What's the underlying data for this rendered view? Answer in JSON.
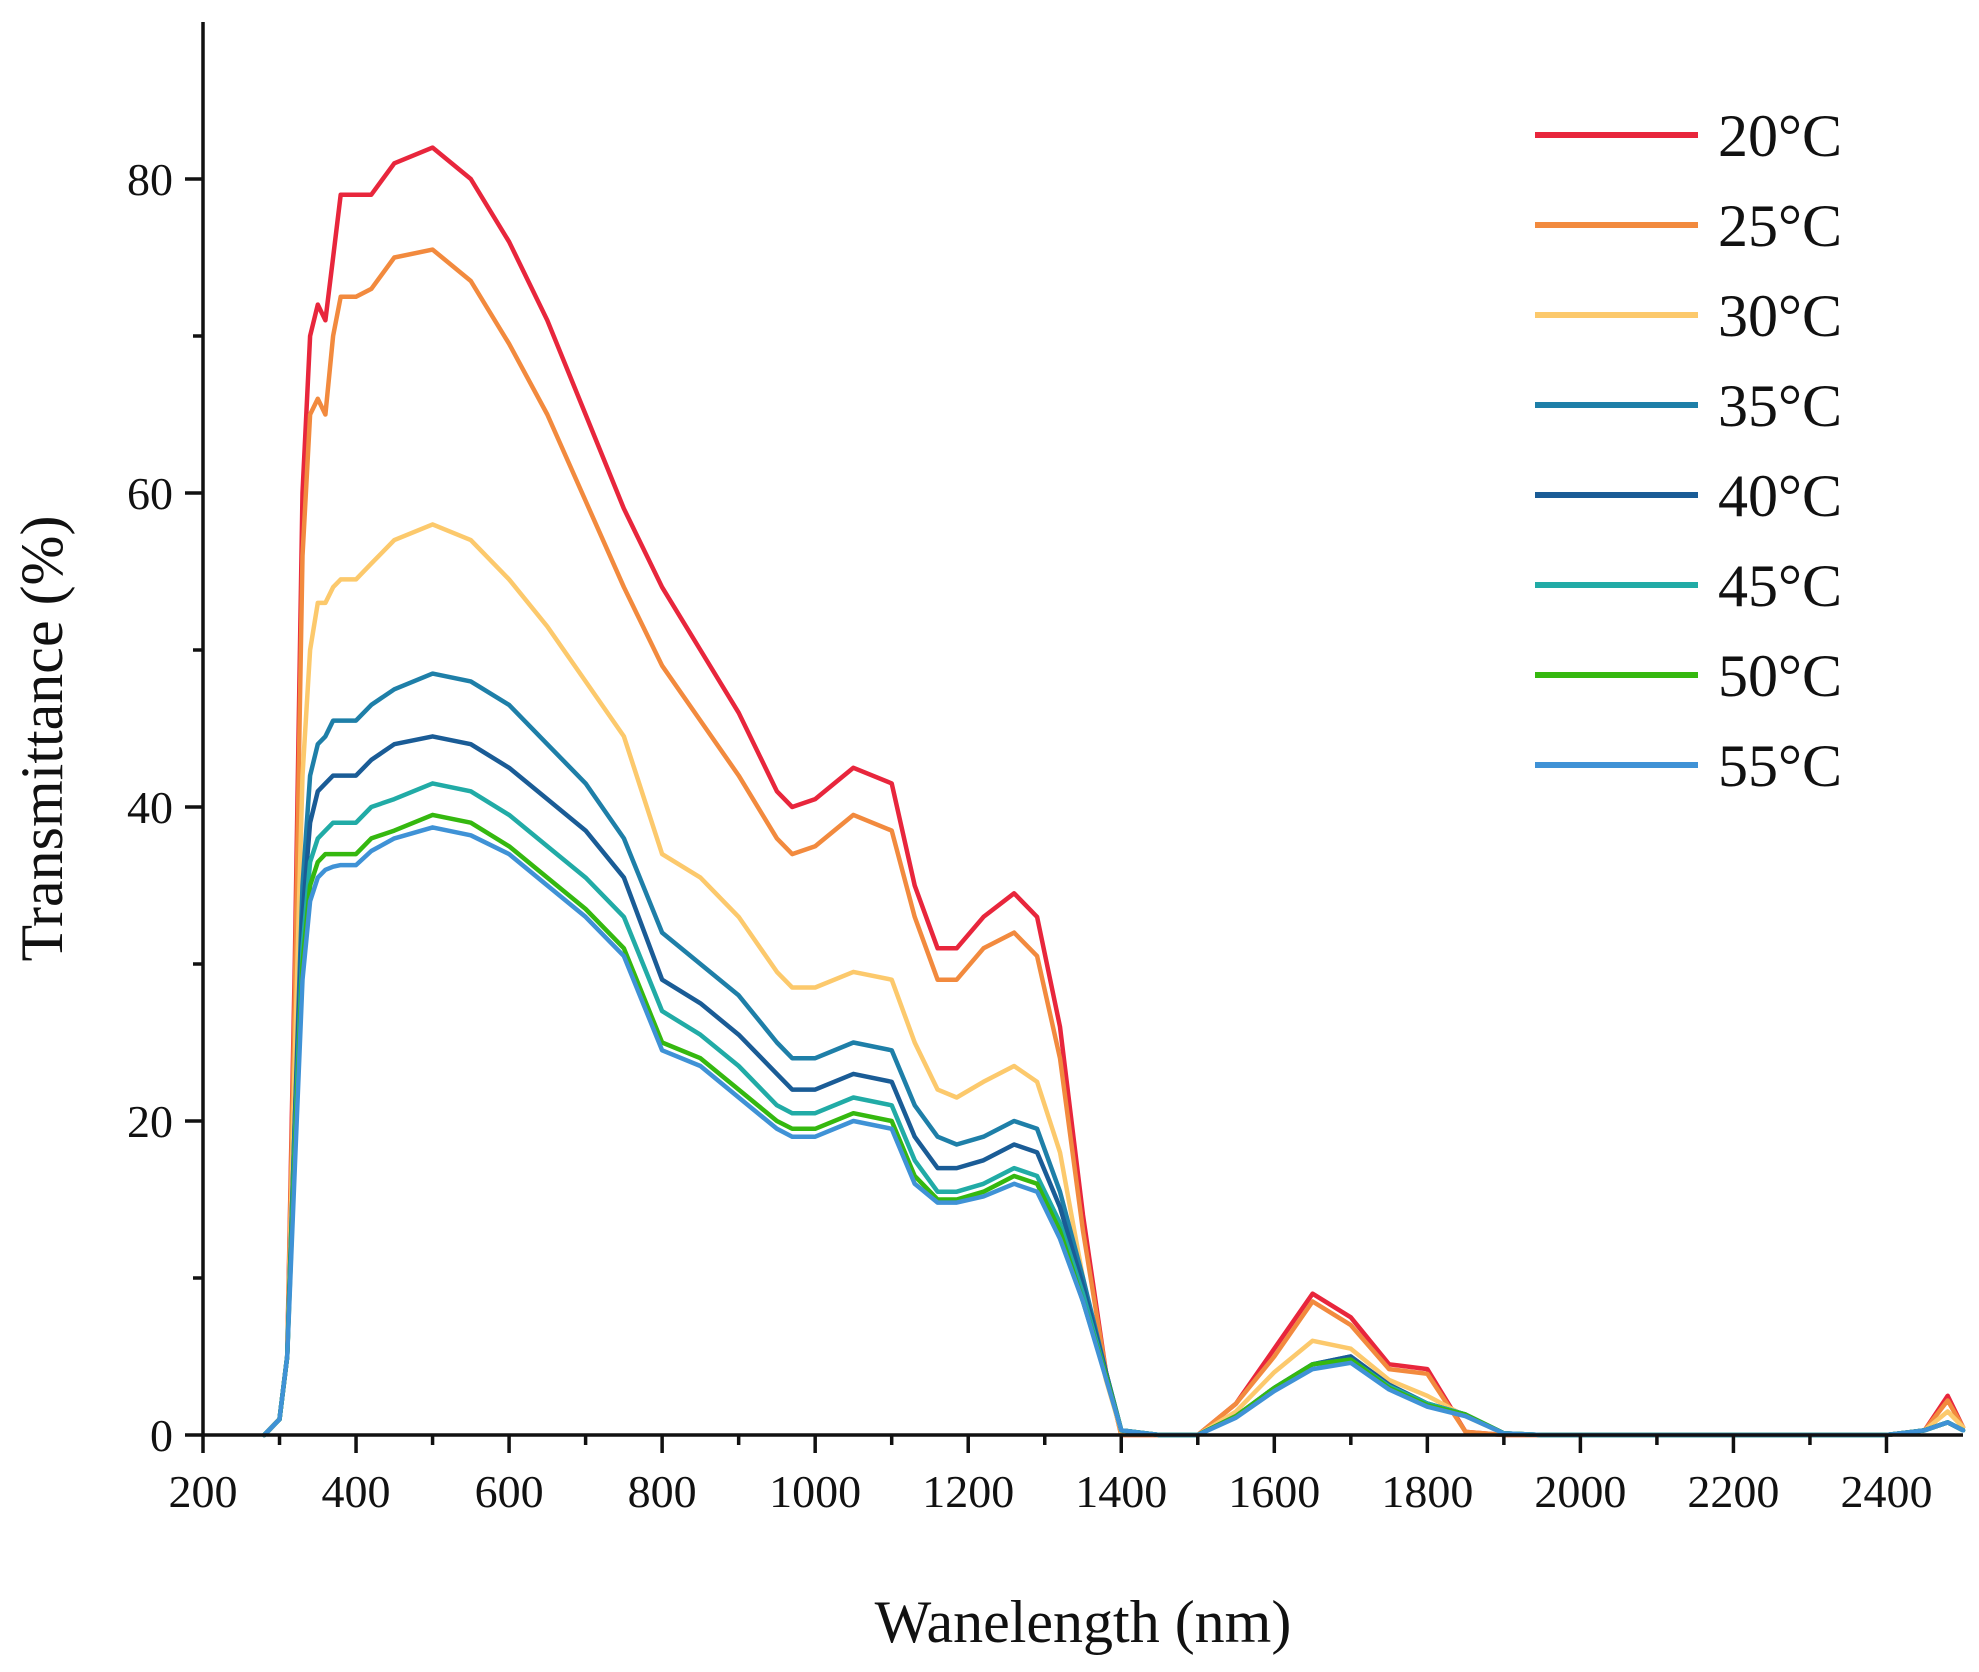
{
  "chart_data": {
    "type": "line",
    "title": "",
    "xlabel": "Wanelength (nm)",
    "ylabel": "Transmittance (%)",
    "xlim": [
      200,
      2500
    ],
    "ylim": [
      0,
      90
    ],
    "xticks": [
      200,
      400,
      600,
      800,
      1000,
      1200,
      1400,
      1600,
      1800,
      2000,
      2200,
      2400
    ],
    "yticks": [
      0,
      20,
      40,
      60,
      80
    ],
    "legend_position": "top-right",
    "x": [
      280,
      300,
      310,
      320,
      330,
      340,
      350,
      360,
      370,
      380,
      400,
      420,
      450,
      500,
      550,
      600,
      650,
      700,
      750,
      800,
      850,
      900,
      950,
      970,
      1000,
      1050,
      1100,
      1130,
      1160,
      1185,
      1220,
      1260,
      1290,
      1320,
      1350,
      1380,
      1400,
      1450,
      1500,
      1550,
      1600,
      1650,
      1700,
      1750,
      1800,
      1850,
      1900,
      1950,
      2000,
      2100,
      2200,
      2300,
      2400,
      2450,
      2480,
      2500
    ],
    "series": [
      {
        "name": "20°C",
        "color": "#e8263c",
        "values": [
          0,
          1,
          5,
          30,
          60,
          70,
          72,
          71,
          75,
          79,
          79,
          79,
          81,
          82,
          80,
          76,
          71,
          65,
          59,
          54,
          50,
          46,
          41,
          40,
          40.5,
          42.5,
          41.5,
          35,
          31,
          31,
          33,
          34.5,
          33,
          26,
          14,
          4,
          0,
          0,
          0,
          2,
          5.5,
          9,
          7.5,
          4.5,
          4.2,
          0.2,
          0,
          0,
          0,
          0,
          0,
          0,
          0,
          0.3,
          2.5,
          0.5
        ]
      },
      {
        "name": "25°C",
        "color": "#f28a3e",
        "values": [
          0,
          1,
          5,
          28,
          56,
          65,
          66,
          65,
          70,
          72.5,
          72.5,
          73,
          75,
          75.5,
          73.5,
          69.5,
          65,
          59.5,
          54,
          49,
          45.5,
          42,
          38,
          37,
          37.5,
          39.5,
          38.5,
          33,
          29,
          29,
          31,
          32,
          30.5,
          24,
          13,
          4,
          0,
          0,
          0,
          2,
          5,
          8.5,
          7,
          4.2,
          3.9,
          0.2,
          0,
          0,
          0,
          0,
          0,
          0,
          0,
          0.3,
          2.2,
          0.5
        ]
      },
      {
        "name": "30°C",
        "color": "#fcc96c",
        "values": [
          0,
          1,
          5,
          24,
          42,
          50,
          53,
          53,
          54,
          54.5,
          54.5,
          55.5,
          57,
          58,
          57,
          54.5,
          51.5,
          48,
          44.5,
          37,
          35.5,
          33,
          29.5,
          28.5,
          28.5,
          29.5,
          29,
          25,
          22,
          21.5,
          22.5,
          23.5,
          22.5,
          18,
          10,
          3.5,
          0.2,
          0,
          0,
          1.5,
          4,
          6,
          5.5,
          3.5,
          2.5,
          1.2,
          0.1,
          0,
          0,
          0,
          0,
          0,
          0,
          0.3,
          1.5,
          0.5
        ]
      },
      {
        "name": "35°C",
        "color": "#1e7fa8",
        "values": [
          0,
          1,
          5,
          20,
          35,
          42,
          44,
          44.5,
          45.5,
          45.5,
          45.5,
          46.5,
          47.5,
          48.5,
          48,
          46.5,
          44,
          41.5,
          38,
          32,
          30,
          28,
          25,
          24,
          24,
          25,
          24.5,
          21,
          19,
          18.5,
          19,
          20,
          19.5,
          15.5,
          10,
          4,
          0.3,
          0,
          0,
          1.2,
          3,
          4.5,
          5,
          3.2,
          2,
          1.3,
          0.1,
          0,
          0,
          0,
          0,
          0,
          0,
          0.3,
          0.8,
          0.3
        ]
      },
      {
        "name": "40°C",
        "color": "#1a5c96",
        "values": [
          0,
          1,
          5,
          20,
          33,
          39,
          41,
          41.5,
          42,
          42,
          42,
          43,
          44,
          44.5,
          44,
          42.5,
          40.5,
          38.5,
          35.5,
          29,
          27.5,
          25.5,
          23,
          22,
          22,
          23,
          22.5,
          19,
          17,
          17,
          17.5,
          18.5,
          18,
          14.5,
          9.5,
          4,
          0.3,
          0,
          0,
          1.2,
          3,
          4.5,
          5,
          3.2,
          2,
          1.3,
          0.1,
          0,
          0,
          0,
          0,
          0,
          0,
          0.3,
          0.8,
          0.3
        ]
      },
      {
        "name": "45°C",
        "color": "#21aba6",
        "values": [
          0,
          1,
          5,
          19,
          31,
          36.5,
          38,
          38.5,
          39,
          39,
          39,
          40,
          40.5,
          41.5,
          41,
          39.5,
          37.5,
          35.5,
          33,
          27,
          25.5,
          23.5,
          21,
          20.5,
          20.5,
          21.5,
          21,
          17.5,
          15.5,
          15.5,
          16,
          17,
          16.5,
          13.5,
          9,
          3.8,
          0.3,
          0,
          0,
          1.2,
          3,
          4.5,
          4.8,
          3.1,
          2,
          1.3,
          0.1,
          0,
          0,
          0,
          0,
          0,
          0,
          0.3,
          0.8,
          0.3
        ]
      },
      {
        "name": "50°C",
        "color": "#35b80f",
        "values": [
          0,
          1,
          5,
          18,
          30,
          35,
          36.5,
          37,
          37,
          37,
          37,
          38,
          38.5,
          39.5,
          39,
          37.5,
          35.5,
          33.5,
          31,
          25,
          24,
          22,
          20,
          19.5,
          19.5,
          20.5,
          20,
          16.5,
          15,
          15,
          15.5,
          16.5,
          16,
          13,
          8.5,
          3.8,
          0.3,
          0,
          0,
          1.2,
          3,
          4.5,
          4.8,
          3,
          1.9,
          1.3,
          0.1,
          0,
          0,
          0,
          0,
          0,
          0,
          0.3,
          0.8,
          0.3
        ]
      },
      {
        "name": "55°C",
        "color": "#3f92d6",
        "values": [
          0,
          1,
          5,
          17,
          29,
          34,
          35.5,
          36,
          36.2,
          36.3,
          36.3,
          37.2,
          38,
          38.7,
          38.2,
          37,
          35,
          33,
          30.5,
          24.5,
          23.5,
          21.5,
          19.5,
          19,
          19,
          20,
          19.5,
          16,
          14.8,
          14.8,
          15.2,
          16,
          15.5,
          12.5,
          8.5,
          3.6,
          0.3,
          0,
          0,
          1.1,
          2.8,
          4.2,
          4.6,
          2.9,
          1.8,
          1.2,
          0.1,
          0,
          0,
          0,
          0,
          0,
          0,
          0.3,
          0.8,
          0.3
        ]
      }
    ]
  }
}
